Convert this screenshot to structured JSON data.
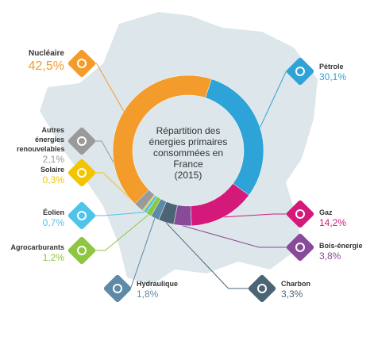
{
  "chart_data": {
    "type": "pie",
    "title": "Répartition des énergies primaires consommées en France",
    "subtitle": "(2015)",
    "categories": [
      "Pétrole",
      "Gaz",
      "Bois-énergie",
      "Charbon",
      "Hydraulique",
      "Agrocarburants",
      "Éolien",
      "Solaire",
      "Autres énergies renouvelables",
      "Nucléaire"
    ],
    "values": [
      30.1,
      14.2,
      3.8,
      3.3,
      1.8,
      1.2,
      0.7,
      0.3,
      2.1,
      42.5
    ],
    "value_labels": [
      "30,1%",
      "14,2%",
      "3,8%",
      "3,3%",
      "1,8%",
      "1,2%",
      "0,7%",
      "0,3%",
      "2,1%",
      "42,5%"
    ],
    "colors": [
      "#2ea3d8",
      "#d4197a",
      "#8a4a9a",
      "#4b6577",
      "#5d8aa8",
      "#8dc63f",
      "#4fc3e8",
      "#f2c500",
      "#9a9a9a",
      "#f39c2b"
    ]
  }
}
